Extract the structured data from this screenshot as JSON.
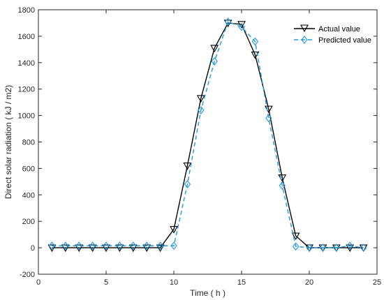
{
  "chart_data": {
    "type": "line",
    "xlabel": "Time ( h )",
    "ylabel": "Direct solar radiation ( kJ / m2)",
    "xlim": [
      0,
      25
    ],
    "ylim": [
      -200,
      1800
    ],
    "xticks": [
      0,
      5,
      10,
      15,
      20,
      25
    ],
    "yticks": [
      -200,
      0,
      200,
      400,
      600,
      800,
      1000,
      1200,
      1400,
      1600,
      1800
    ],
    "grid": false,
    "legend_position": "top-right",
    "x": [
      1,
      2,
      3,
      4,
      5,
      6,
      7,
      8,
      9,
      10,
      11,
      12,
      13,
      14,
      15,
      16,
      17,
      18,
      19,
      20,
      21,
      22,
      23,
      24
    ],
    "series": [
      {
        "name": "Actual value",
        "color": "#000000",
        "line_style": "solid",
        "marker": "down-triangle",
        "values": [
          0,
          0,
          0,
          0,
          0,
          0,
          0,
          0,
          0,
          140,
          620,
          1130,
          1510,
          1700,
          1690,
          1460,
          1050,
          530,
          90,
          0,
          0,
          0,
          0,
          0
        ]
      },
      {
        "name": "Predicted value",
        "color": "#1e9be0",
        "line_style": "dashed",
        "marker": "diamond",
        "values": [
          15,
          15,
          15,
          15,
          15,
          15,
          15,
          15,
          15,
          15,
          480,
          1040,
          1410,
          1710,
          1670,
          1560,
          980,
          470,
          10,
          0,
          0,
          0,
          15,
          0
        ]
      }
    ]
  }
}
